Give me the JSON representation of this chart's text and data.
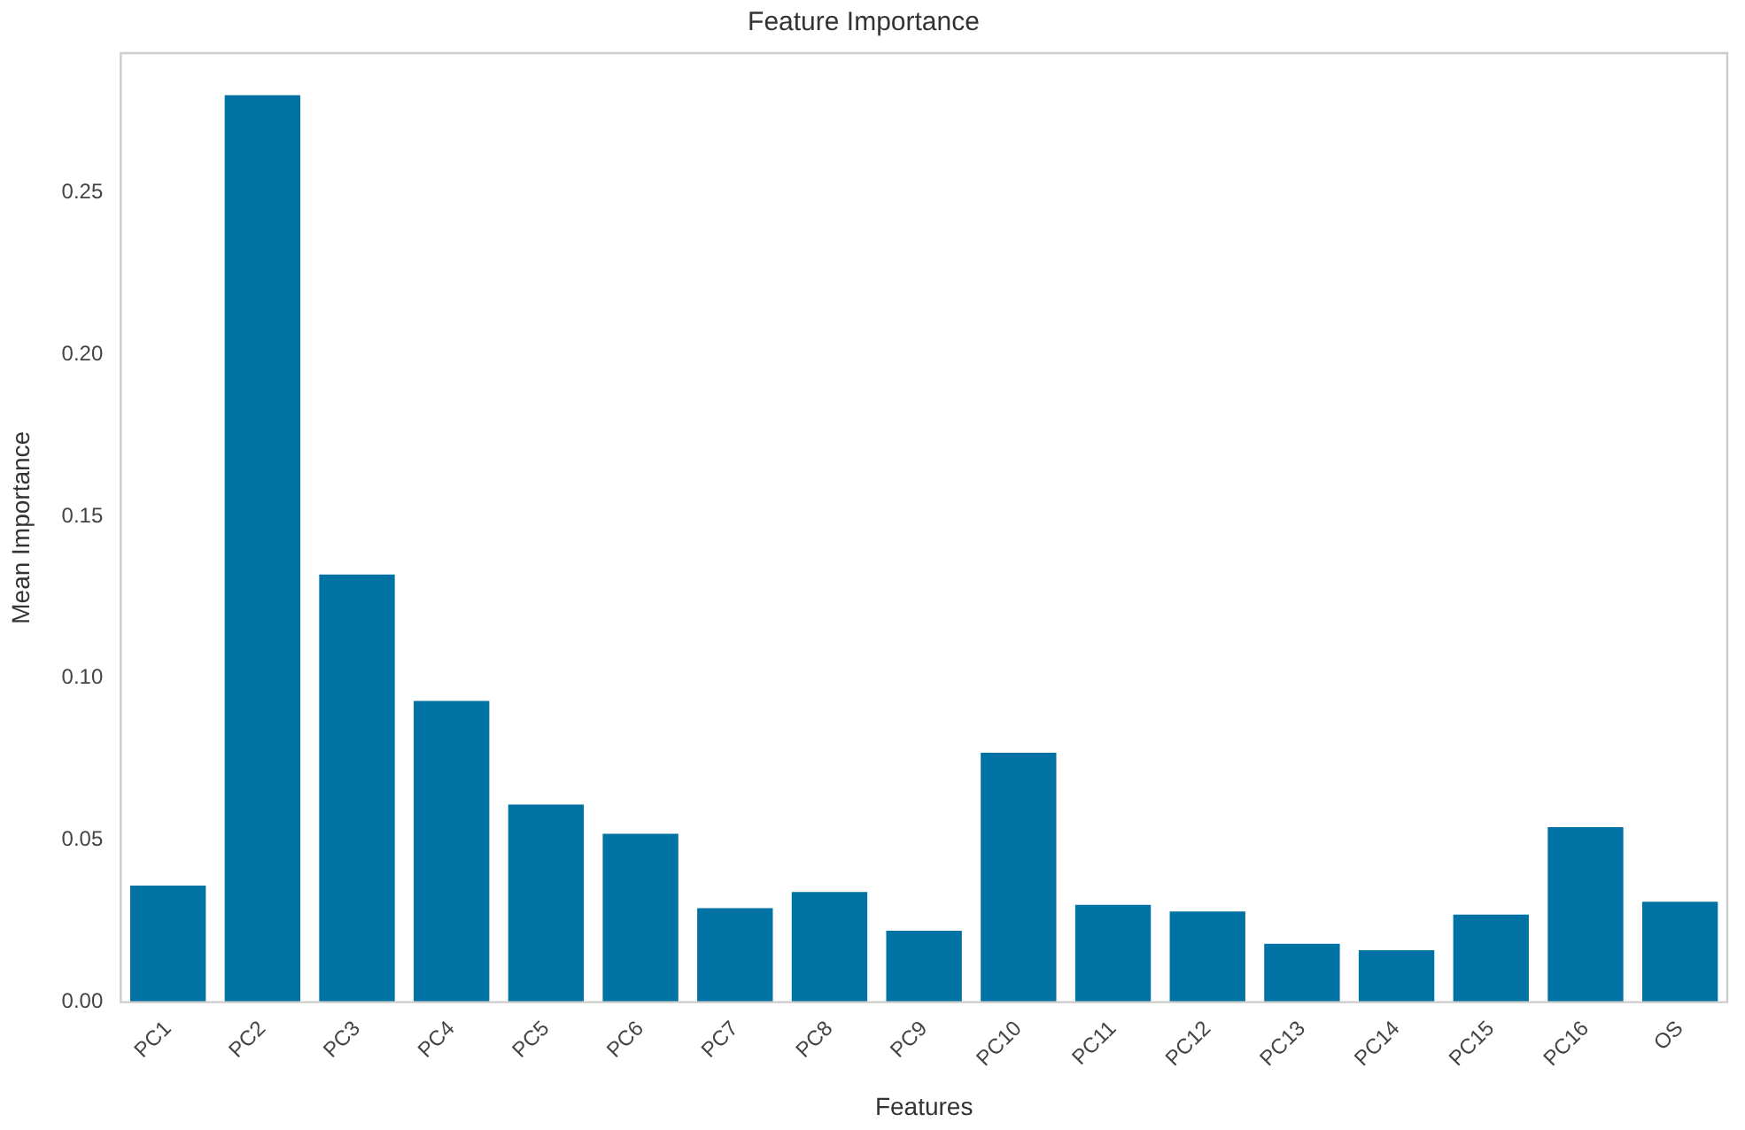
{
  "chart_data": {
    "type": "bar",
    "title": "Feature Importance",
    "xlabel": "Features",
    "ylabel": "Mean Importance",
    "categories": [
      "PC1",
      "PC2",
      "PC3",
      "PC4",
      "PC5",
      "PC6",
      "PC7",
      "PC8",
      "PC9",
      "PC10",
      "PC11",
      "PC12",
      "PC13",
      "PC14",
      "PC15",
      "PC16",
      "OS"
    ],
    "values": [
      0.036,
      0.28,
      0.132,
      0.093,
      0.061,
      0.052,
      0.029,
      0.034,
      0.022,
      0.077,
      0.03,
      0.028,
      0.018,
      0.016,
      0.027,
      0.054,
      0.031
    ],
    "color": "#0072a3",
    "ylim": [
      0,
      0.293
    ],
    "yticks": [
      {
        "value": 0,
        "label": "0.00"
      },
      0.05,
      {
        "value": 0.1,
        "label": "0.10"
      },
      0.15,
      {
        "value": 0.2,
        "label": "0.20"
      },
      0.25
    ],
    "grid": false,
    "legend": false
  }
}
